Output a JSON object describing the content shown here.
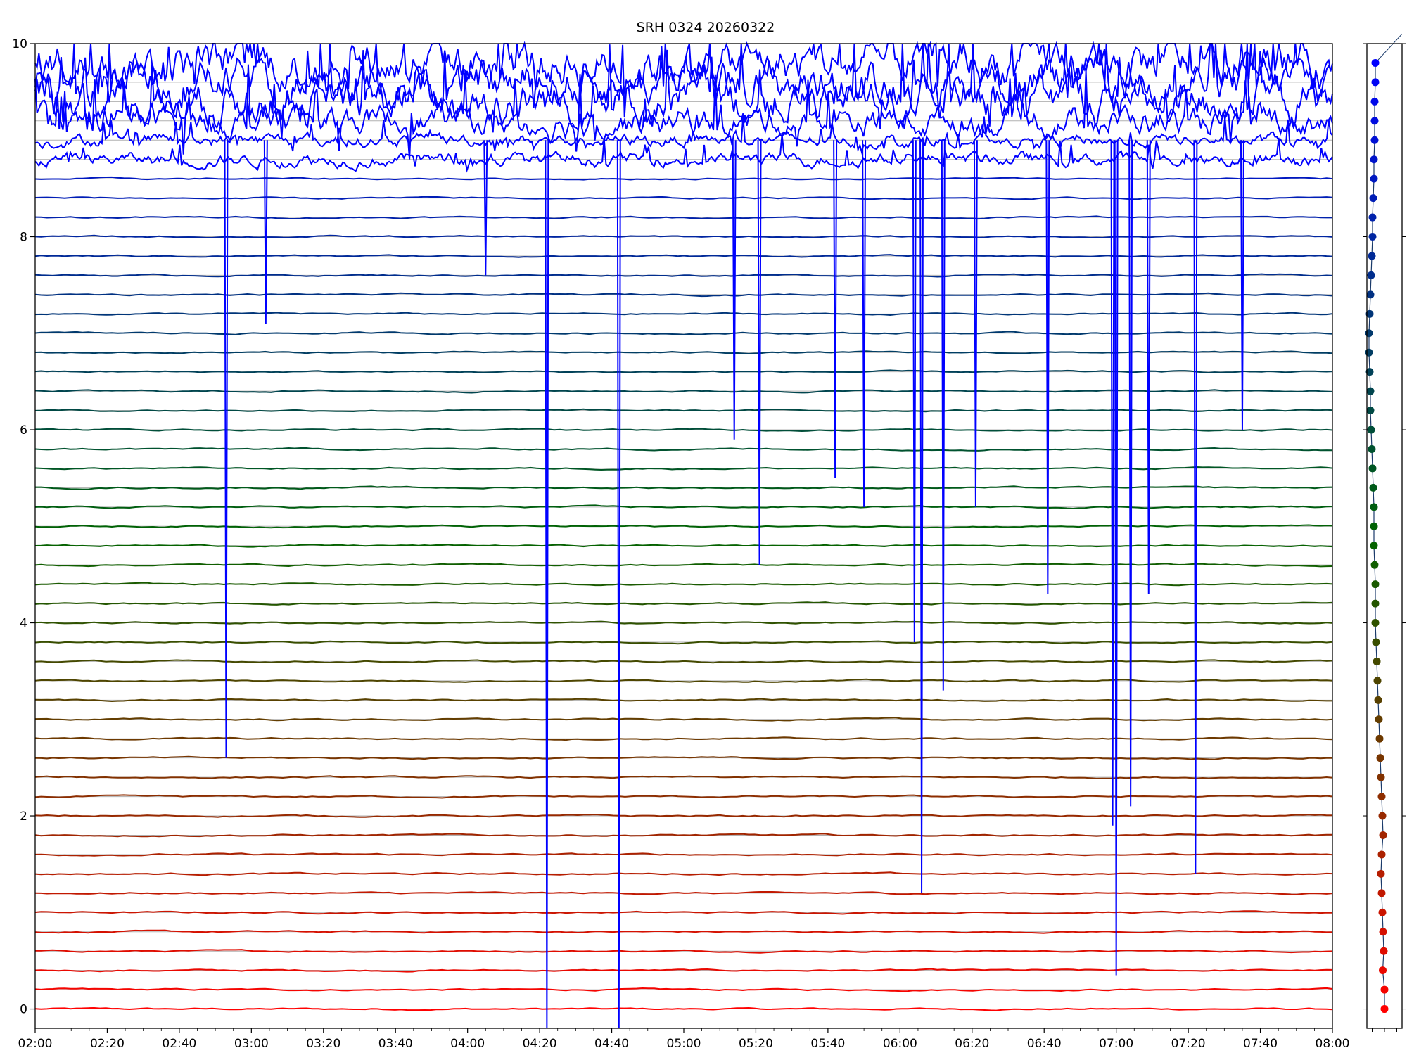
{
  "chart_data": [
    {
      "type": "line",
      "title": "SRH 0324 20260322",
      "xlabel": "",
      "ylabel": "",
      "x_ticks": [
        "02:00",
        "02:20",
        "02:40",
        "03:00",
        "03:20",
        "03:40",
        "04:00",
        "04:20",
        "04:40",
        "05:00",
        "05:20",
        "05:40",
        "06:00",
        "06:20",
        "06:40",
        "07:00",
        "07:20",
        "07:40",
        "08:00"
      ],
      "xlim": [
        "02:00",
        "08:00"
      ],
      "y_ticks": [
        "0",
        "2",
        "4",
        "6",
        "8",
        "10"
      ],
      "ylim": [
        -0.2,
        10
      ],
      "grid": "horizontal line at each channel baseline",
      "n_channels": 50,
      "channel_spacing": 0.2,
      "series_color_gradient": [
        "#ff0000",
        "#006400",
        "#0000ff"
      ],
      "disturbed_channels_note": "Upper channels (baseline >= 8.8) show strong high-amplitude noise; many deep downward spikes in blue",
      "spikes": [
        {
          "time": "02:53",
          "y_min": 2.6
        },
        {
          "time": "03:04",
          "y_min": 7.1
        },
        {
          "time": "04:05",
          "y_min": 7.6
        },
        {
          "time": "04:22",
          "y_min": -0.2
        },
        {
          "time": "04:42",
          "y_min": -0.2
        },
        {
          "time": "05:14",
          "y_min": 5.9
        },
        {
          "time": "05:21",
          "y_min": 4.6
        },
        {
          "time": "05:42",
          "y_min": 5.5
        },
        {
          "time": "05:50",
          "y_min": 5.2
        },
        {
          "time": "06:04",
          "y_min": 3.8
        },
        {
          "time": "06:06",
          "y_min": 1.2
        },
        {
          "time": "06:12",
          "y_min": 3.3
        },
        {
          "time": "06:21",
          "y_min": 5.2
        },
        {
          "time": "06:41",
          "y_min": 4.3
        },
        {
          "time": "06:59",
          "y_min": 1.9
        },
        {
          "time": "07:00",
          "y_min": 0.35
        },
        {
          "time": "07:04",
          "y_min": 2.1
        },
        {
          "time": "07:09",
          "y_min": 4.3
        },
        {
          "time": "07:22",
          "y_min": 1.4
        },
        {
          "time": "07:35",
          "y_min": 6.0
        }
      ]
    },
    {
      "type": "scatter",
      "title": "",
      "ylim": [
        -0.2,
        10
      ],
      "y_ticks_labeled": false,
      "points_note": "50 dots at channel baselines 0 to 9.8 step 0.2, colored red->green->blue, connected by a thin line",
      "x_offsets": [
        0.5,
        0.5,
        0.45,
        0.48,
        0.46,
        0.44,
        0.42,
        0.4,
        0.42,
        0.46,
        0.44,
        0.42,
        0.4,
        0.38,
        0.36,
        0.34,
        0.32,
        0.3,
        0.28,
        0.26,
        0.24,
        0.24,
        0.24,
        0.22,
        0.2,
        0.2,
        0.2,
        0.18,
        0.16,
        0.14,
        0.12,
        0.1,
        0.1,
        0.08,
        0.06,
        0.06,
        0.08,
        0.1,
        0.12,
        0.14,
        0.16,
        0.16,
        0.18,
        0.2,
        0.2,
        0.22,
        0.22,
        0.22,
        0.24,
        0.24
      ]
    }
  ],
  "colors": {
    "axes": "#000000",
    "grid": "#b0b0b0",
    "disturbance": "#0000ff"
  }
}
